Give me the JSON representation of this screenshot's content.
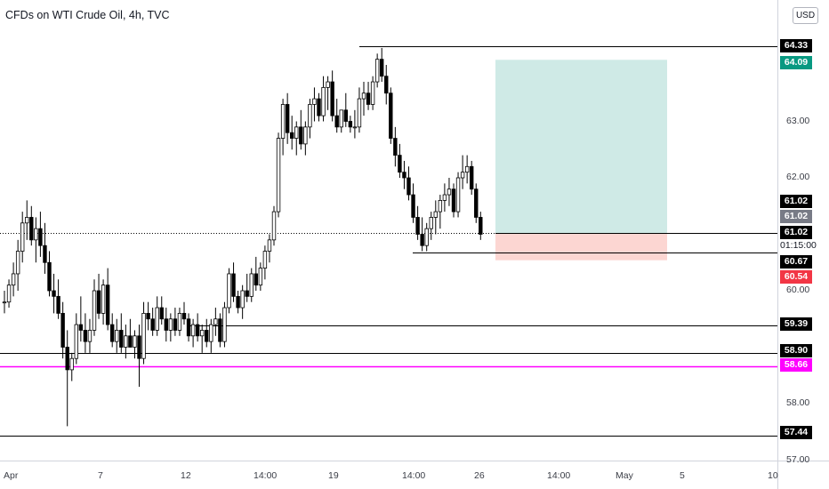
{
  "title": "CFDs on WTI Crude Oil, 4h, TVC",
  "currency_button": "USD",
  "colors": {
    "up_candle": "#ffffff",
    "down_candle": "#000000",
    "wick": "#000000",
    "horizontal_line": "#000000",
    "highlight_line": "#ff00ff",
    "target_zone": "#cfeae6",
    "stop_zone": "#fcd6d2",
    "take_profit_tag": "#089981",
    "stop_loss_tag": "#f23645",
    "neutral_tag": "#787b86",
    "price_axis_tag": "#000000"
  },
  "chart_data": {
    "type": "candlestick",
    "title": "CFDs on WTI Crude Oil, 4h, TVC",
    "ylim": [
      56.9,
      65.1
    ],
    "y_tick_labels": [
      "57.00",
      "58.00",
      "60.00",
      "62.00",
      "63.00"
    ],
    "x_tick_labels": [
      "Apr",
      "7",
      "12",
      "14:00",
      "19",
      "14:00",
      "26",
      "14:00",
      "May",
      "5",
      "10"
    ],
    "last_price": 61.02,
    "countdown": "01:15:00",
    "horizontal_levels": [
      64.33,
      60.67,
      59.39,
      58.9,
      58.66,
      57.44
    ],
    "highlight_level": 58.66,
    "price_tags": [
      {
        "value": "64.33",
        "style": "line"
      },
      {
        "value": "64.09",
        "style": "take-profit"
      },
      {
        "value": "61.02",
        "style": "line"
      },
      {
        "value": "61.02",
        "style": "neutral"
      },
      {
        "value": "61.02",
        "style": "last"
      },
      {
        "value": "01:15:00",
        "style": "countdown"
      },
      {
        "value": "60.67",
        "style": "line"
      },
      {
        "value": "60.54",
        "style": "stop-loss"
      },
      {
        "value": "59.39",
        "style": "line"
      },
      {
        "value": "58.90",
        "style": "line"
      },
      {
        "value": "58.66",
        "style": "highlight"
      },
      {
        "value": "57.44",
        "style": "line"
      }
    ],
    "position_tool": {
      "entry": 61.02,
      "target": 64.09,
      "stop": 60.54
    },
    "candles": [
      [
        59.8,
        60.0,
        59.6,
        59.8
      ],
      [
        59.8,
        60.2,
        59.7,
        60.1
      ],
      [
        60.1,
        60.5,
        59.9,
        60.3
      ],
      [
        60.3,
        60.9,
        60.0,
        60.7
      ],
      [
        60.7,
        61.4,
        60.5,
        61.2
      ],
      [
        61.2,
        61.6,
        60.9,
        61.3
      ],
      [
        61.3,
        61.5,
        60.8,
        60.9
      ],
      [
        60.9,
        61.3,
        60.5,
        61.1
      ],
      [
        61.1,
        61.4,
        60.6,
        60.8
      ],
      [
        60.8,
        61.2,
        60.3,
        60.5
      ],
      [
        60.5,
        60.7,
        59.9,
        60.0
      ],
      [
        60.0,
        60.3,
        59.6,
        59.9
      ],
      [
        59.9,
        60.2,
        59.5,
        59.6
      ],
      [
        59.6,
        59.8,
        58.8,
        59.0
      ],
      [
        59.0,
        59.3,
        57.6,
        58.6
      ],
      [
        58.6,
        58.9,
        58.4,
        58.8
      ],
      [
        58.8,
        59.6,
        58.7,
        59.4
      ],
      [
        59.4,
        59.9,
        59.1,
        59.3
      ],
      [
        59.3,
        59.6,
        58.9,
        59.1
      ],
      [
        59.1,
        59.5,
        58.9,
        59.3
      ],
      [
        59.3,
        60.2,
        59.2,
        60.0
      ],
      [
        60.0,
        60.3,
        59.5,
        59.6
      ],
      [
        59.6,
        60.2,
        59.4,
        60.1
      ],
      [
        60.1,
        60.4,
        59.3,
        59.4
      ],
      [
        59.4,
        59.6,
        59.0,
        59.1
      ],
      [
        59.1,
        59.5,
        58.9,
        59.3
      ],
      [
        59.3,
        59.6,
        58.9,
        59.0
      ],
      [
        59.0,
        59.4,
        58.8,
        59.2
      ],
      [
        59.2,
        59.5,
        59.0,
        59.0
      ],
      [
        59.0,
        59.3,
        58.8,
        59.2
      ],
      [
        59.2,
        59.4,
        58.3,
        58.8
      ],
      [
        58.8,
        59.8,
        58.7,
        59.6
      ],
      [
        59.6,
        59.8,
        59.3,
        59.5
      ],
      [
        59.5,
        59.7,
        59.2,
        59.3
      ],
      [
        59.3,
        59.9,
        59.2,
        59.7
      ],
      [
        59.7,
        59.9,
        59.4,
        59.5
      ],
      [
        59.5,
        59.7,
        59.1,
        59.3
      ],
      [
        59.3,
        59.6,
        59.1,
        59.5
      ],
      [
        59.5,
        59.7,
        59.2,
        59.3
      ],
      [
        59.3,
        59.7,
        59.2,
        59.6
      ],
      [
        59.6,
        59.8,
        59.4,
        59.5
      ],
      [
        59.5,
        59.6,
        59.1,
        59.2
      ],
      [
        59.2,
        59.5,
        59.0,
        59.4
      ],
      [
        59.4,
        59.6,
        59.1,
        59.2
      ],
      [
        59.2,
        59.4,
        58.9,
        59.3
      ],
      [
        59.3,
        59.5,
        59.0,
        59.1
      ],
      [
        59.1,
        59.5,
        58.9,
        59.4
      ],
      [
        59.4,
        59.7,
        59.2,
        59.5
      ],
      [
        59.5,
        59.6,
        59.0,
        59.1
      ],
      [
        59.1,
        59.8,
        59.0,
        59.7
      ],
      [
        59.7,
        60.4,
        59.6,
        60.3
      ],
      [
        60.3,
        60.5,
        59.8,
        59.9
      ],
      [
        59.9,
        60.0,
        59.6,
        59.7
      ],
      [
        59.7,
        60.1,
        59.5,
        60.0
      ],
      [
        60.0,
        60.3,
        59.8,
        59.9
      ],
      [
        59.9,
        60.4,
        59.8,
        60.3
      ],
      [
        60.3,
        60.6,
        60.0,
        60.1
      ],
      [
        60.1,
        60.5,
        60.0,
        60.4
      ],
      [
        60.4,
        60.8,
        60.2,
        60.7
      ],
      [
        60.7,
        61.0,
        60.5,
        60.9
      ],
      [
        60.9,
        61.5,
        60.8,
        61.4
      ],
      [
        61.4,
        62.8,
        61.3,
        62.7
      ],
      [
        62.7,
        63.4,
        62.4,
        63.3
      ],
      [
        63.3,
        63.5,
        62.6,
        62.8
      ],
      [
        62.8,
        63.1,
        62.5,
        62.7
      ],
      [
        62.7,
        63.0,
        62.4,
        62.9
      ],
      [
        62.9,
        63.2,
        62.5,
        62.6
      ],
      [
        62.6,
        63.0,
        62.4,
        62.9
      ],
      [
        62.9,
        63.4,
        62.7,
        63.3
      ],
      [
        63.3,
        63.6,
        63.0,
        63.4
      ],
      [
        63.4,
        63.5,
        63.0,
        63.1
      ],
      [
        63.1,
        63.8,
        63.0,
        63.6
      ],
      [
        63.6,
        63.8,
        63.2,
        63.7
      ],
      [
        63.7,
        63.9,
        63.0,
        63.1
      ],
      [
        63.1,
        63.4,
        62.8,
        62.9
      ],
      [
        62.9,
        63.2,
        62.8,
        63.2
      ],
      [
        63.2,
        63.5,
        62.9,
        63.0
      ],
      [
        63.0,
        63.1,
        62.8,
        62.9
      ],
      [
        62.9,
        63.2,
        62.7,
        62.9
      ],
      [
        62.9,
        63.6,
        62.8,
        63.4
      ],
      [
        63.4,
        63.7,
        63.1,
        63.5
      ],
      [
        63.5,
        63.7,
        63.2,
        63.3
      ],
      [
        63.3,
        63.8,
        63.2,
        63.7
      ],
      [
        63.7,
        64.2,
        63.6,
        64.1
      ],
      [
        64.1,
        64.3,
        63.7,
        63.8
      ],
      [
        63.8,
        64.0,
        63.3,
        63.5
      ],
      [
        63.5,
        63.6,
        62.6,
        62.7
      ],
      [
        62.7,
        62.9,
        62.2,
        62.4
      ],
      [
        62.4,
        62.6,
        62.0,
        62.1
      ],
      [
        62.1,
        62.3,
        61.8,
        62.0
      ],
      [
        62.0,
        62.2,
        61.6,
        61.7
      ],
      [
        61.7,
        61.9,
        61.2,
        61.3
      ],
      [
        61.3,
        61.5,
        60.9,
        61.0
      ],
      [
        61.0,
        61.3,
        60.7,
        60.8
      ],
      [
        60.8,
        61.2,
        60.7,
        61.1
      ],
      [
        61.1,
        61.4,
        60.9,
        61.3
      ],
      [
        61.3,
        61.6,
        61.0,
        61.4
      ],
      [
        61.4,
        61.7,
        61.1,
        61.6
      ],
      [
        61.6,
        61.9,
        61.4,
        61.7
      ],
      [
        61.7,
        62.0,
        61.5,
        61.8
      ],
      [
        61.8,
        61.9,
        61.3,
        61.4
      ],
      [
        61.4,
        62.1,
        61.3,
        62.0
      ],
      [
        62.0,
        62.4,
        61.8,
        62.1
      ],
      [
        62.1,
        62.4,
        61.9,
        62.2
      ],
      [
        62.2,
        62.3,
        61.7,
        61.8
      ],
      [
        61.8,
        61.9,
        61.2,
        61.3
      ],
      [
        61.3,
        61.4,
        60.9,
        61.0
      ]
    ]
  }
}
